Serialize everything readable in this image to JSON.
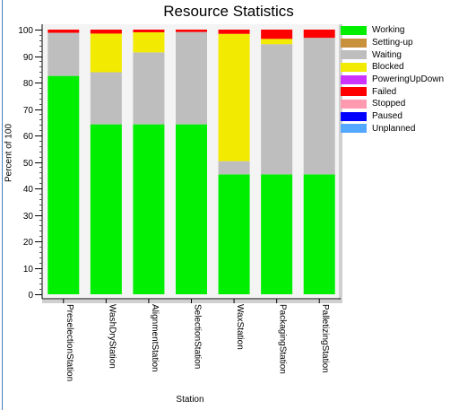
{
  "chart_data": {
    "type": "bar",
    "stacked": true,
    "title": "Resource Statistics",
    "xlabel": "Station",
    "ylabel": "Percent of 100",
    "ylim": [
      0,
      100
    ],
    "yticks": [
      0,
      10,
      20,
      30,
      40,
      50,
      60,
      70,
      80,
      90,
      100
    ],
    "grid": false,
    "legend_position": "right",
    "categories": [
      "PreselectionStation",
      "WashDryStation",
      "AlignmentStation",
      "SelectionStation",
      "WaxStation",
      "PackagingStation",
      "PalletizingStation"
    ],
    "series": [
      {
        "name": "Working",
        "color": "#00ee00",
        "values": [
          82.5,
          64.2,
          64.2,
          64.2,
          45.3,
          45.3,
          45.3
        ]
      },
      {
        "name": "Setting-up",
        "color": "#c8913c",
        "values": [
          0,
          0,
          0,
          0,
          0,
          0,
          0
        ]
      },
      {
        "name": "Waiting",
        "color": "#bebebe",
        "values": [
          16.3,
          19.7,
          27.2,
          34.9,
          5.0,
          49.2,
          51.6
        ]
      },
      {
        "name": "Blocked",
        "color": "#f2ea00",
        "values": [
          0,
          14.6,
          7.6,
          0,
          48.1,
          2.0,
          0
        ]
      },
      {
        "name": "PoweringUpDown",
        "color": "#cc33ff",
        "values": [
          0,
          0,
          0,
          0,
          0,
          0,
          0
        ]
      },
      {
        "name": "Failed",
        "color": "#ff0000",
        "values": [
          1.2,
          1.5,
          1.0,
          0.9,
          1.6,
          3.5,
          3.1
        ]
      },
      {
        "name": "Stopped",
        "color": "#ff9ab0",
        "values": [
          0,
          0,
          0,
          0,
          0,
          0,
          0
        ]
      },
      {
        "name": "Paused",
        "color": "#0000ff",
        "values": [
          0,
          0,
          0,
          0,
          0,
          0,
          0
        ]
      },
      {
        "name": "Unplanned",
        "color": "#55a8ff",
        "values": [
          0,
          0,
          0,
          0,
          0,
          0,
          0
        ]
      }
    ]
  }
}
